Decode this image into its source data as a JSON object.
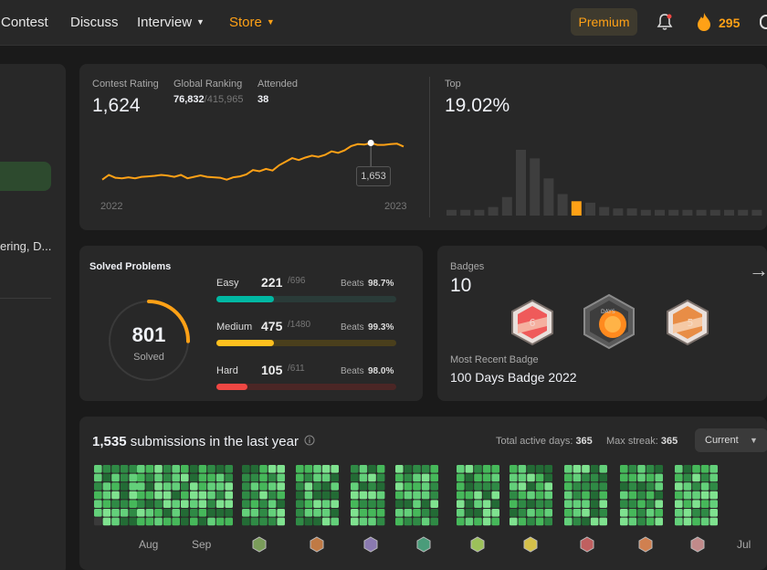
{
  "nav": {
    "items": [
      {
        "label": "Contest"
      },
      {
        "label": "Discuss"
      },
      {
        "label": "Interview"
      },
      {
        "label": "Store"
      }
    ],
    "premium_label": "Premium",
    "streak_count": "295",
    "icons": [
      "bell-icon",
      "fire-icon",
      "chevron-down-icon"
    ],
    "accent_color": "#ffa116"
  },
  "profile": {
    "partial_text": "ering, D..."
  },
  "contest": {
    "rating_label": "Contest Rating",
    "rating_value": "1,624",
    "ranking_label": "Global Ranking",
    "ranking_value": "76,832",
    "ranking_total": "/415,965",
    "attended_label": "Attended",
    "attended_value": "38",
    "tooltip_value": "1,653",
    "year_start": "2022",
    "year_end": "2023",
    "top_label": "Top",
    "top_value": "19.02%"
  },
  "chart_data": [
    {
      "type": "line",
      "x_range": [
        "2022",
        "2023"
      ],
      "values": [
        1500,
        1520,
        1508,
        1506,
        1510,
        1506,
        1512,
        1514,
        1516,
        1520,
        1517,
        1512,
        1520,
        1506,
        1512,
        1518,
        1512,
        1510,
        1508,
        1500,
        1510,
        1514,
        1522,
        1540,
        1535,
        1545,
        1538,
        1560,
        1575,
        1590,
        1582,
        1592,
        1600,
        1595,
        1603,
        1618,
        1612,
        1622,
        1640,
        1648,
        1646,
        1653,
        1645,
        1645,
        1648,
        1650,
        1638
      ],
      "highlight": {
        "index": 41,
        "value": 1653
      },
      "color": "#ffa116"
    },
    {
      "type": "bar",
      "label": "Top",
      "values": [
        4,
        4,
        4,
        6,
        13,
        46,
        40,
        26,
        15,
        10,
        9,
        6,
        5,
        5,
        4,
        4,
        4,
        4,
        4,
        4,
        4,
        4,
        4
      ],
      "highlight_index": 9,
      "color": "#3e3e3e",
      "highlight_color": "#ffa116"
    }
  ],
  "solved": {
    "title": "Solved Problems",
    "total": "801",
    "total_label": "Solved",
    "ring_fraction": 0.252,
    "difficulties": [
      {
        "name": "Easy",
        "count": "221",
        "total": "/696",
        "beats_label": "Beats",
        "beats": "98.7%",
        "fraction": 0.318,
        "color": "#00b8a3",
        "track": "#2a3b38"
      },
      {
        "name": "Medium",
        "count": "475",
        "total": "/1480",
        "beats_label": "Beats",
        "beats": "99.3%",
        "fraction": 0.321,
        "color": "#ffc01e",
        "track": "#4a3f1c"
      },
      {
        "name": "Hard",
        "count": "105",
        "total": "/611",
        "beats_label": "Beats",
        "beats": "98.0%",
        "fraction": 0.172,
        "color": "#ef4743",
        "track": "#4b2625"
      }
    ]
  },
  "badges": {
    "title": "Badges",
    "count": "10",
    "recent_label": "Most Recent Badge",
    "recent_name": "100 Days Badge 2022",
    "badge1_text": "6",
    "badge2_text": "DAYS",
    "badge3_text": "5"
  },
  "submissions": {
    "count": "1,535",
    "label": "submissions in the last year",
    "active_label": "Total active days:",
    "active_value": "365",
    "streak_label": "Max streak:",
    "streak_value": "365",
    "dropdown_value": "Current",
    "months": [
      "Aug",
      "Sep",
      "Jul"
    ]
  }
}
